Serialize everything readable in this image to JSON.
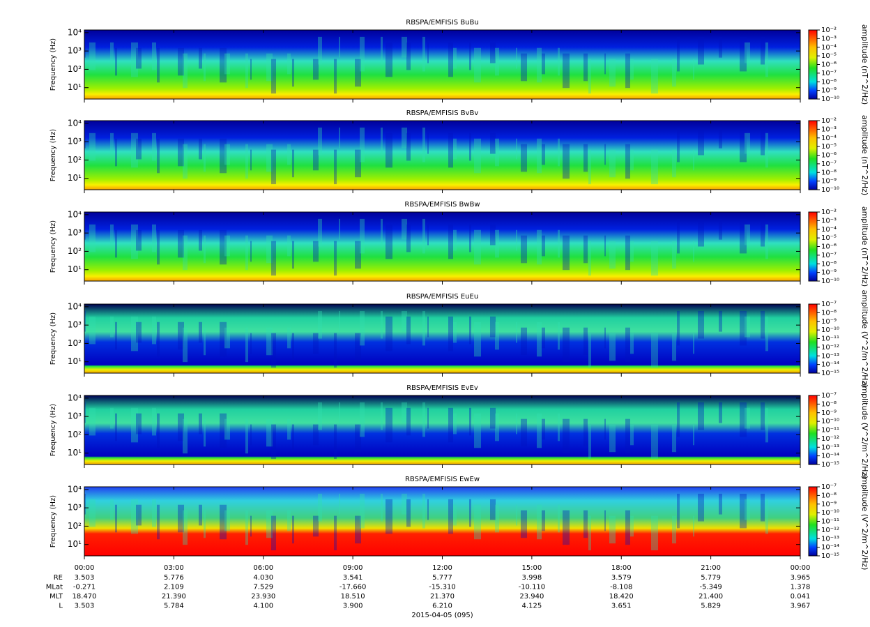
{
  "chart_data": [
    {
      "type": "spectrogram",
      "title": "RBSPA/EMFISIS  BuBu",
      "y_label": "Frequency (Hz)",
      "log_y": true,
      "ylim": [
        2.4,
        14000
      ],
      "yticks": [
        {
          "value": 10,
          "label": "10¹"
        },
        {
          "value": 100,
          "label": "10²"
        },
        {
          "value": 1000,
          "label": "10³"
        },
        {
          "value": 10000,
          "label": "10⁴"
        }
      ],
      "colorbar_label": "amplitude (nT^2/Hz)",
      "zlim": [
        1e-10,
        0.01
      ],
      "zticks": [
        {
          "value": 0.01,
          "label": "10⁻²"
        },
        {
          "value": 0.001,
          "label": "10⁻³"
        },
        {
          "value": 0.0001,
          "label": "10⁻⁴"
        },
        {
          "value": 1e-05,
          "label": "10⁻⁵"
        },
        {
          "value": 1e-06,
          "label": "10⁻⁶"
        },
        {
          "value": 1e-07,
          "label": "10⁻⁷"
        },
        {
          "value": 1e-08,
          "label": "10⁻⁸"
        },
        {
          "value": 1e-09,
          "label": "10⁻⁹"
        },
        {
          "value": 1e-10,
          "label": "10⁻¹⁰"
        }
      ]
    },
    {
      "type": "spectrogram",
      "title": "RBSPA/EMFISIS  BvBv",
      "y_label": "Frequency (Hz)",
      "log_y": true,
      "ylim": [
        2.4,
        14000
      ],
      "yticks": [
        {
          "value": 10,
          "label": "10¹"
        },
        {
          "value": 100,
          "label": "10²"
        },
        {
          "value": 1000,
          "label": "10³"
        },
        {
          "value": 10000,
          "label": "10⁴"
        }
      ],
      "colorbar_label": "amplitude (nT^2/Hz)",
      "zlim": [
        1e-10,
        0.01
      ],
      "zticks": [
        {
          "value": 0.01,
          "label": "10⁻²"
        },
        {
          "value": 0.001,
          "label": "10⁻³"
        },
        {
          "value": 0.0001,
          "label": "10⁻⁴"
        },
        {
          "value": 1e-05,
          "label": "10⁻⁵"
        },
        {
          "value": 1e-06,
          "label": "10⁻⁶"
        },
        {
          "value": 1e-07,
          "label": "10⁻⁷"
        },
        {
          "value": 1e-08,
          "label": "10⁻⁸"
        },
        {
          "value": 1e-09,
          "label": "10⁻⁹"
        },
        {
          "value": 1e-10,
          "label": "10⁻¹⁰"
        }
      ]
    },
    {
      "type": "spectrogram",
      "title": "RBSPA/EMFISIS  BwBw",
      "y_label": "Frequency (Hz)",
      "log_y": true,
      "ylim": [
        2.4,
        14000
      ],
      "yticks": [
        {
          "value": 10,
          "label": "10¹"
        },
        {
          "value": 100,
          "label": "10²"
        },
        {
          "value": 1000,
          "label": "10³"
        },
        {
          "value": 10000,
          "label": "10⁴"
        }
      ],
      "colorbar_label": "amplitude (nT^2/Hz)",
      "zlim": [
        1e-10,
        0.01
      ],
      "zticks": [
        {
          "value": 0.01,
          "label": "10⁻²"
        },
        {
          "value": 0.001,
          "label": "10⁻³"
        },
        {
          "value": 0.0001,
          "label": "10⁻⁴"
        },
        {
          "value": 1e-05,
          "label": "10⁻⁵"
        },
        {
          "value": 1e-06,
          "label": "10⁻⁶"
        },
        {
          "value": 1e-07,
          "label": "10⁻⁷"
        },
        {
          "value": 1e-08,
          "label": "10⁻⁸"
        },
        {
          "value": 1e-09,
          "label": "10⁻⁹"
        },
        {
          "value": 1e-10,
          "label": "10⁻¹⁰"
        }
      ]
    },
    {
      "type": "spectrogram",
      "title": "RBSPA/EMFISIS  EuEu",
      "y_label": "Frequency (Hz)",
      "log_y": true,
      "ylim": [
        2.4,
        14000
      ],
      "yticks": [
        {
          "value": 10,
          "label": "10¹"
        },
        {
          "value": 100,
          "label": "10²"
        },
        {
          "value": 1000,
          "label": "10³"
        },
        {
          "value": 10000,
          "label": "10⁴"
        }
      ],
      "colorbar_label": "amplitude (V^2/m^2/Hz)",
      "zlim": [
        1e-15,
        1e-07
      ],
      "zticks": [
        {
          "value": 1e-07,
          "label": "10⁻⁷"
        },
        {
          "value": 1e-08,
          "label": "10⁻⁸"
        },
        {
          "value": 1e-09,
          "label": "10⁻⁹"
        },
        {
          "value": 1e-10,
          "label": "10⁻¹⁰"
        },
        {
          "value": 1e-11,
          "label": "10⁻¹¹"
        },
        {
          "value": 1e-12,
          "label": "10⁻¹²"
        },
        {
          "value": 1e-13,
          "label": "10⁻¹³"
        },
        {
          "value": 1e-14,
          "label": "10⁻¹⁴"
        },
        {
          "value": 1e-15,
          "label": "10⁻¹⁵"
        }
      ]
    },
    {
      "type": "spectrogram",
      "title": "RBSPA/EMFISIS  EvEv",
      "y_label": "Frequency (Hz)",
      "log_y": true,
      "ylim": [
        2.4,
        14000
      ],
      "yticks": [
        {
          "value": 10,
          "label": "10¹"
        },
        {
          "value": 100,
          "label": "10²"
        },
        {
          "value": 1000,
          "label": "10³"
        },
        {
          "value": 10000,
          "label": "10⁴"
        }
      ],
      "colorbar_label": "amplitude (V^2/m^2/Hz)",
      "zlim": [
        1e-15,
        1e-07
      ],
      "zticks": [
        {
          "value": 1e-07,
          "label": "10⁻⁷"
        },
        {
          "value": 1e-08,
          "label": "10⁻⁸"
        },
        {
          "value": 1e-09,
          "label": "10⁻⁹"
        },
        {
          "value": 1e-10,
          "label": "10⁻¹⁰"
        },
        {
          "value": 1e-11,
          "label": "10⁻¹¹"
        },
        {
          "value": 1e-12,
          "label": "10⁻¹²"
        },
        {
          "value": 1e-13,
          "label": "10⁻¹³"
        },
        {
          "value": 1e-14,
          "label": "10⁻¹⁴"
        },
        {
          "value": 1e-15,
          "label": "10⁻¹⁵"
        }
      ]
    },
    {
      "type": "spectrogram",
      "title": "RBSPA/EMFISIS  EwEw",
      "y_label": "Frequency (Hz)",
      "log_y": true,
      "ylim": [
        2.4,
        14000
      ],
      "yticks": [
        {
          "value": 10,
          "label": "10¹"
        },
        {
          "value": 100,
          "label": "10²"
        },
        {
          "value": 1000,
          "label": "10³"
        },
        {
          "value": 10000,
          "label": "10⁴"
        }
      ],
      "colorbar_label": "amplitude (V^2/m^2/Hz)",
      "zlim": [
        1e-15,
        1e-07
      ],
      "zticks": [
        {
          "value": 1e-07,
          "label": "10⁻⁷"
        },
        {
          "value": 1e-08,
          "label": "10⁻⁸"
        },
        {
          "value": 1e-09,
          "label": "10⁻⁹"
        },
        {
          "value": 1e-10,
          "label": "10⁻¹⁰"
        },
        {
          "value": 1e-11,
          "label": "10⁻¹¹"
        },
        {
          "value": 1e-12,
          "label": "10⁻¹²"
        },
        {
          "value": 1e-13,
          "label": "10⁻¹³"
        },
        {
          "value": 1e-14,
          "label": "10⁻¹⁴"
        },
        {
          "value": 1e-15,
          "label": "10⁻¹⁵"
        }
      ],
      "xlim": [
        0,
        24
      ],
      "xticks": [
        {
          "value": 0,
          "label": "00:00"
        },
        {
          "value": 3,
          "label": "03:00"
        },
        {
          "value": 6,
          "label": "06:00"
        },
        {
          "value": 9,
          "label": "09:00"
        },
        {
          "value": 12,
          "label": "12:00"
        },
        {
          "value": 15,
          "label": "15:00"
        },
        {
          "value": 18,
          "label": "18:00"
        },
        {
          "value": 21,
          "label": "21:00"
        },
        {
          "value": 24,
          "label": "00:00"
        }
      ]
    }
  ],
  "ephemeris": {
    "labels": [
      "RE",
      "MLat",
      "MLT",
      "L"
    ],
    "rows": [
      [
        "3.503",
        "5.776",
        "4.030",
        "3.541",
        "5.777",
        "3.998",
        "3.579",
        "5.779",
        "3.965"
      ],
      [
        "-0.271",
        "2.109",
        "7.529",
        "-17.660",
        "-15.310",
        "-10.110",
        "-8.108",
        "-5.349",
        "1.378"
      ],
      [
        "18.470",
        "21.390",
        "23.930",
        "18.510",
        "21.370",
        "23.940",
        "18.420",
        "21.400",
        "0.041"
      ],
      [
        "3.503",
        "5.784",
        "4.100",
        "3.900",
        "6.210",
        "4.125",
        "3.651",
        "5.829",
        "3.967"
      ]
    ]
  },
  "date_label": "2015-04-05 (095)"
}
